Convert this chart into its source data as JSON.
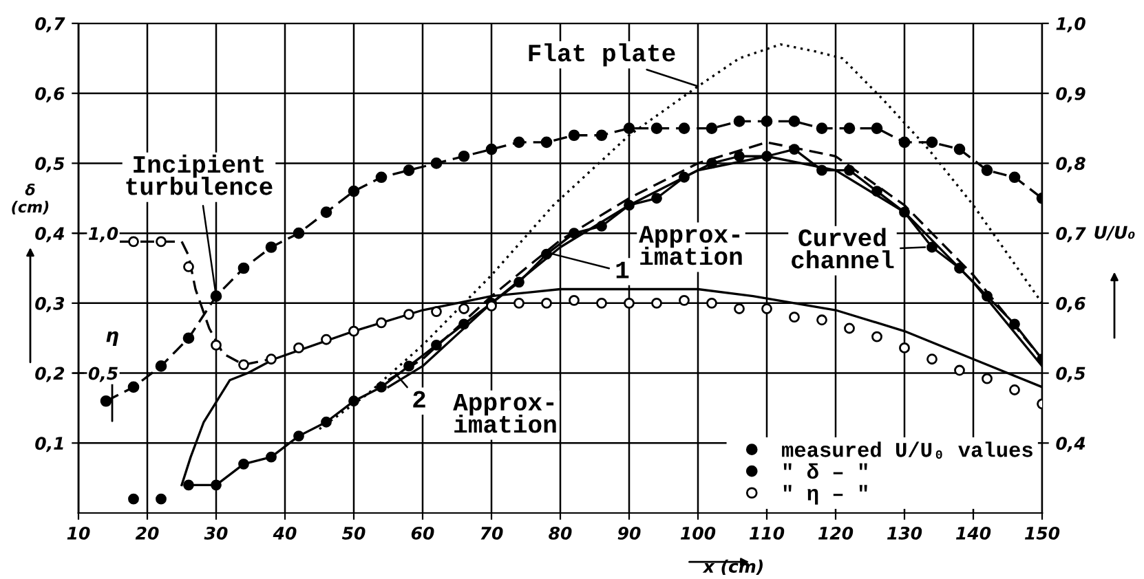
{
  "chart_data": {
    "type": "line",
    "xlabel": "x (cm)",
    "ylabel": "δ\n(cm)",
    "y2label": "U/U₀",
    "y3label": "η",
    "xlim": [
      10,
      150
    ],
    "xticks": [
      10,
      20,
      30,
      40,
      50,
      60,
      70,
      80,
      90,
      100,
      110,
      120,
      130,
      140,
      150
    ],
    "ylim": [
      0,
      0.7
    ],
    "yticks": [
      {
        "value": 0.1,
        "label": "0,1"
      },
      {
        "value": 0.2,
        "label": "0,2"
      },
      {
        "value": 0.3,
        "label": "0,3"
      },
      {
        "value": 0.4,
        "label": "0,4"
      },
      {
        "value": 0.5,
        "label": "0,5"
      },
      {
        "value": 0.6,
        "label": "0,6"
      },
      {
        "value": 0.7,
        "label": "0,7"
      }
    ],
    "y2lim": [
      0.3,
      1.0
    ],
    "y2ticks": [
      {
        "value": 0.4,
        "label": "0,4"
      },
      {
        "value": 0.5,
        "label": "0,5"
      },
      {
        "value": 0.6,
        "label": "0,6"
      },
      {
        "value": 0.7,
        "label": "0,7"
      },
      {
        "value": 0.8,
        "label": "0,8"
      },
      {
        "value": 0.9,
        "label": "0,9"
      },
      {
        "value": 1.0,
        "label": "1,0"
      }
    ],
    "y3lim": [
      0,
      1.75
    ],
    "y3ticks": [
      {
        "value": 0.5,
        "label": "0,5"
      },
      {
        "value": 1.0,
        "label": "1,0"
      }
    ],
    "grid": true,
    "legend": "bottom right",
    "series": [
      {
        "name": "measured U/U₀ values",
        "axis": "y2",
        "color": "#000000",
        "marker": "circle",
        "line_style": "dashed",
        "x": [
          14,
          18,
          22,
          26,
          30,
          34,
          38,
          42,
          46,
          50,
          54,
          58,
          62,
          66,
          70,
          74,
          78,
          82,
          86,
          90,
          94,
          98,
          102,
          106,
          110,
          114,
          118,
          122,
          126,
          130,
          134,
          138,
          142,
          146,
          150
        ],
        "values": [
          0.46,
          0.48,
          0.51,
          0.55,
          0.61,
          0.65,
          0.68,
          0.7,
          0.73,
          0.76,
          0.78,
          0.79,
          0.8,
          0.81,
          0.82,
          0.83,
          0.83,
          0.84,
          0.84,
          0.85,
          0.85,
          0.85,
          0.85,
          0.86,
          0.86,
          0.86,
          0.85,
          0.85,
          0.85,
          0.83,
          0.83,
          0.82,
          0.79,
          0.78,
          0.75
        ]
      },
      {
        "name": "″ δ – ″",
        "type": "scatter",
        "axis": "y",
        "color": "#000000",
        "marker": "circle",
        "x": [
          18,
          22,
          26,
          30,
          34,
          38,
          42,
          46,
          50,
          54,
          58,
          62,
          66,
          70,
          74,
          78,
          82,
          86,
          90,
          94,
          98,
          102,
          106,
          110,
          114,
          118,
          122,
          126,
          130,
          134,
          138,
          142,
          146,
          150
        ],
        "values": [
          0.02,
          0.02,
          0.04,
          0.04,
          0.07,
          0.08,
          0.11,
          0.13,
          0.16,
          0.18,
          0.21,
          0.24,
          0.27,
          0.3,
          0.33,
          0.37,
          0.4,
          0.41,
          0.44,
          0.45,
          0.48,
          0.5,
          0.51,
          0.51,
          0.52,
          0.49,
          0.49,
          0.46,
          0.43,
          0.38,
          0.35,
          0.31,
          0.27,
          0.22
        ]
      },
      {
        "name": "″ η – ″",
        "type": "scatter",
        "axis": "y3",
        "color": "#ffffff",
        "marker": "circle",
        "x": [
          18,
          22,
          26,
          30,
          34,
          38,
          42,
          46,
          50,
          54,
          58,
          62,
          66,
          70,
          74,
          78,
          82,
          86,
          90,
          94,
          98,
          102,
          106,
          110,
          114,
          118,
          122,
          126,
          130,
          134,
          138,
          142,
          146,
          150
        ],
        "values": [
          0.97,
          0.97,
          0.88,
          0.6,
          0.53,
          0.55,
          0.59,
          0.62,
          0.65,
          0.68,
          0.71,
          0.72,
          0.73,
          0.74,
          0.75,
          0.75,
          0.76,
          0.75,
          0.75,
          0.75,
          0.76,
          0.75,
          0.73,
          0.73,
          0.7,
          0.69,
          0.66,
          0.63,
          0.59,
          0.55,
          0.51,
          0.48,
          0.44,
          0.39
        ]
      },
      {
        "type": "line",
        "axis": "y3",
        "color": "#000000",
        "line_style": "dashed",
        "x": [
          16,
          18,
          22,
          25,
          26,
          27,
          29,
          31,
          34,
          38
        ],
        "values": [
          0.97,
          0.97,
          0.97,
          0.97,
          0.92,
          0.8,
          0.66,
          0.57,
          0.53,
          0.55
        ]
      },
      {
        "type": "line",
        "axis": "y",
        "color": "#000000",
        "line_style": "dotted",
        "x": [
          45,
          52,
          60,
          70,
          79,
          90,
          100,
          106,
          112,
          117,
          121,
          127,
          133.5,
          140,
          145,
          150
        ],
        "values": [
          0.12,
          0.17,
          0.24,
          0.34,
          0.44,
          0.54,
          0.61,
          0.65,
          0.67,
          0.66,
          0.65,
          0.59,
          0.52,
          0.44,
          0.37,
          0.3
        ]
      },
      {
        "type": "line",
        "axis": "y",
        "color": "#000000",
        "line_style": "dashed",
        "x": [
          55,
          60,
          70,
          80,
          90,
          100,
          110,
          120,
          130,
          140,
          150
        ],
        "values": [
          0.19,
          0.22,
          0.31,
          0.39,
          0.45,
          0.5,
          0.53,
          0.51,
          0.44,
          0.34,
          0.22
        ]
      },
      {
        "type": "line",
        "axis": "y",
        "color": "#000000",
        "line_style": "solid",
        "x": [
          55,
          60,
          70,
          80,
          90,
          100,
          110,
          120,
          130,
          140,
          150
        ],
        "values": [
          0.18,
          0.21,
          0.3,
          0.38,
          0.44,
          0.49,
          0.51,
          0.49,
          0.43,
          0.33,
          0.21
        ]
      },
      {
        "type": "line",
        "axis": "y",
        "color": "#000000",
        "line_style": "solid",
        "x": [
          26,
          30,
          34,
          38,
          42,
          46,
          50,
          54,
          58,
          62,
          66,
          70,
          74,
          78,
          82,
          86,
          90,
          94,
          98,
          102,
          106,
          110,
          114,
          118,
          122,
          126,
          130,
          134,
          138,
          142,
          146,
          150
        ],
        "values": [
          0.04,
          0.04,
          0.07,
          0.08,
          0.11,
          0.13,
          0.16,
          0.18,
          0.21,
          0.24,
          0.27,
          0.3,
          0.33,
          0.37,
          0.4,
          0.41,
          0.44,
          0.45,
          0.48,
          0.5,
          0.51,
          0.51,
          0.52,
          0.49,
          0.49,
          0.46,
          0.43,
          0.38,
          0.35,
          0.31,
          0.27,
          0.22
        ]
      },
      {
        "type": "line",
        "axis": "y",
        "color": "#000000",
        "line_style": "solid",
        "x": [
          25,
          26.3,
          28.2,
          32,
          34.6,
          38.4,
          50,
          60,
          70,
          80,
          90,
          100,
          108,
          120,
          130,
          140,
          150
        ],
        "values": [
          0.04,
          0.08,
          0.13,
          0.19,
          0.2,
          0.22,
          0.26,
          0.29,
          0.31,
          0.32,
          0.32,
          0.32,
          0.31,
          0.29,
          0.26,
          0.22,
          0.18
        ]
      }
    ],
    "annotations": [
      {
        "text": "Flat plate",
        "x": 100,
        "y": 0.61
      },
      {
        "text": "Incipient\nturbulence",
        "x": 30,
        "y": 0.31
      },
      {
        "text": "1",
        "x": 79,
        "y": 0.37
      },
      "Approx-\nimation",
      {
        "text": "Curved\nchannel",
        "x": 133,
        "y": 0.38
      },
      {
        "text": "2",
        "x": 56,
        "y": 0.2
      },
      "Approx-\nimation"
    ]
  }
}
